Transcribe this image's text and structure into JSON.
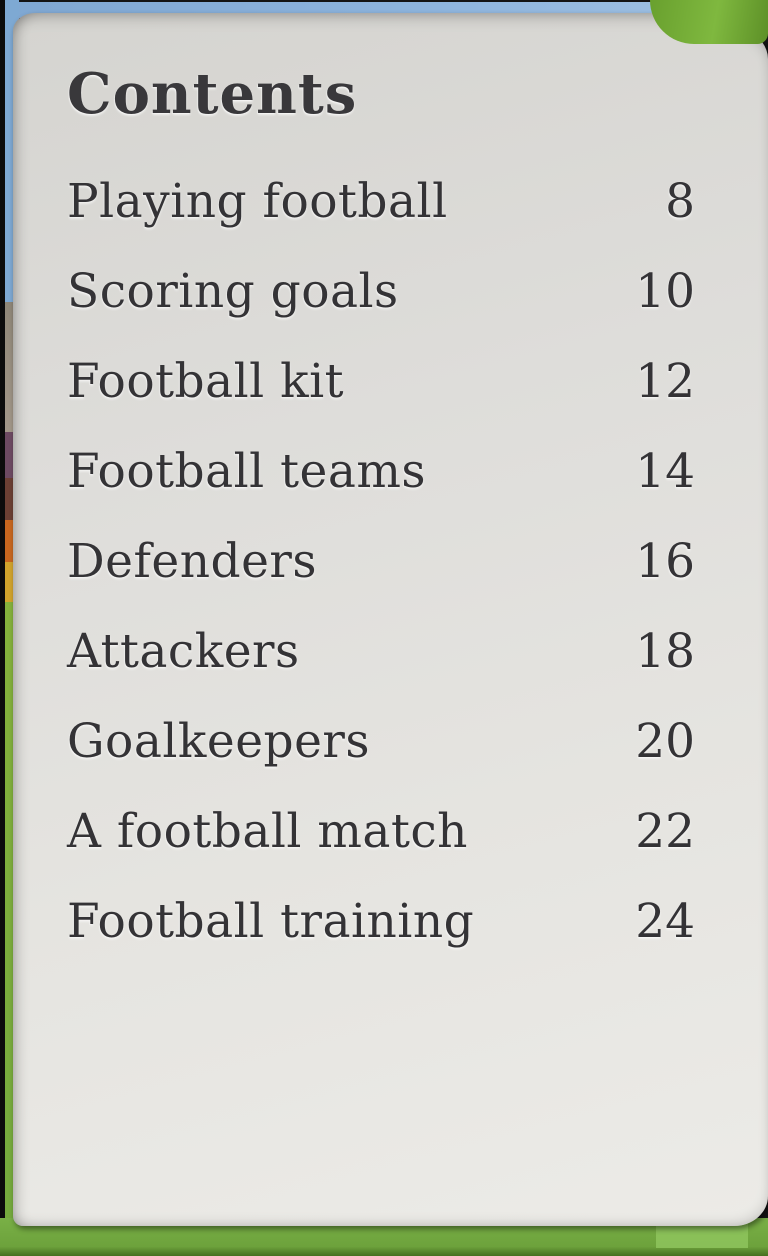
{
  "book": {
    "title": "Contents",
    "entries": [
      {
        "label": "Playing football",
        "page": "8"
      },
      {
        "label": "Scoring goals",
        "page": "10"
      },
      {
        "label": "Football kit",
        "page": "12"
      },
      {
        "label": "Football teams",
        "page": "14"
      },
      {
        "label": "Defenders",
        "page": "16"
      },
      {
        "label": "Attackers",
        "page": "18"
      },
      {
        "label": "Goalkeepers",
        "page": "20"
      },
      {
        "label": "A football match",
        "page": "22"
      },
      {
        "label": "Football training",
        "page": "24"
      }
    ]
  },
  "colors": {
    "cover_green": "#76ad3f",
    "sky_blue": "#84add7",
    "page_background": "#e2e1dd",
    "text_ink": "#39383b"
  }
}
